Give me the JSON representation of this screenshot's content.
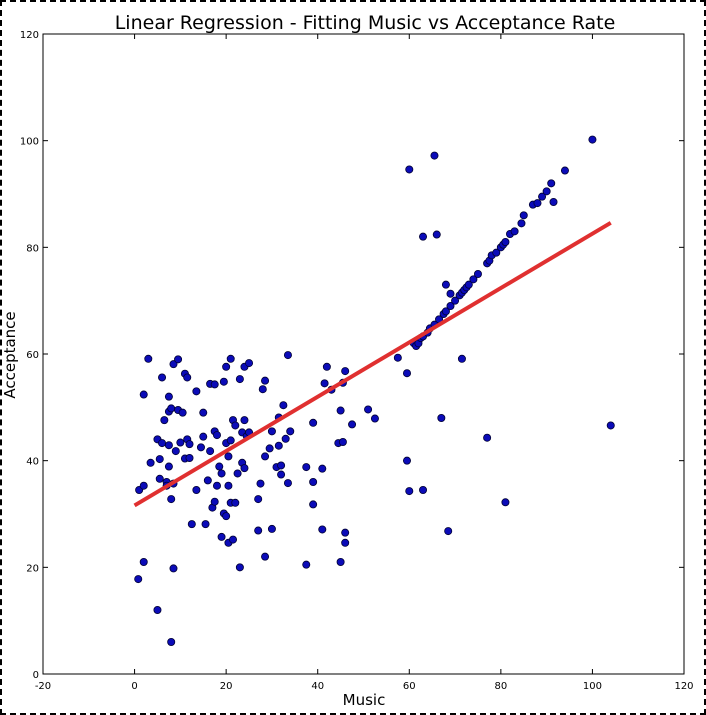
{
  "chart_data": {
    "type": "scatter",
    "title": "Linear Regression - Fitting Music vs Acceptance Rate",
    "xlabel": "Music",
    "ylabel": "Acceptance",
    "xlim": [
      -20,
      120
    ],
    "ylim": [
      0,
      120
    ],
    "xticks": [
      -20,
      0,
      20,
      40,
      60,
      80,
      100,
      120
    ],
    "yticks": [
      0,
      20,
      40,
      60,
      80,
      100,
      120
    ],
    "grid": false,
    "colors": {
      "points": "#0b0bb8",
      "point_edge": "#000033",
      "fit_line": "#e03030"
    },
    "series": [
      {
        "type": "scatter",
        "points": [
          [
            0.8,
            17.8
          ],
          [
            1,
            34.5
          ],
          [
            2,
            21
          ],
          [
            2,
            35.3
          ],
          [
            2,
            52.4
          ],
          [
            3,
            59.1
          ],
          [
            3.5,
            39.6
          ],
          [
            5,
            12
          ],
          [
            5,
            44
          ],
          [
            5.5,
            36.6
          ],
          [
            5.5,
            40.3
          ],
          [
            6,
            43.3
          ],
          [
            6,
            55.6
          ],
          [
            6.5,
            47.6
          ],
          [
            7,
            36
          ],
          [
            7,
            35.3
          ],
          [
            7.5,
            42.9
          ],
          [
            7.5,
            38.9
          ],
          [
            7.5,
            49.2
          ],
          [
            7.5,
            52
          ],
          [
            8,
            6
          ],
          [
            8,
            49.8
          ],
          [
            8,
            32.8
          ],
          [
            8.5,
            19.8
          ],
          [
            8.5,
            35.7
          ],
          [
            8.5,
            58.1
          ],
          [
            9,
            41.8
          ],
          [
            9.5,
            49.5
          ],
          [
            9.5,
            59
          ],
          [
            10,
            43.4
          ],
          [
            10.5,
            49
          ],
          [
            11,
            40.4
          ],
          [
            11,
            56.3
          ],
          [
            11.5,
            44
          ],
          [
            11.5,
            55.6
          ],
          [
            12,
            40.5
          ],
          [
            12,
            43.1
          ],
          [
            12.5,
            28.1
          ],
          [
            13.5,
            53
          ],
          [
            13.5,
            34.5
          ],
          [
            14.5,
            42.5
          ],
          [
            15,
            44.5
          ],
          [
            15,
            49
          ],
          [
            15.5,
            28.1
          ],
          [
            16,
            36.3
          ],
          [
            16.5,
            54.4
          ],
          [
            16.5,
            41.8
          ],
          [
            17,
            31.2
          ],
          [
            17.5,
            54.3
          ],
          [
            17.5,
            45.5
          ],
          [
            17.5,
            32.3
          ],
          [
            18,
            44.8
          ],
          [
            18,
            35.3
          ],
          [
            18.5,
            38.9
          ],
          [
            19,
            25.7
          ],
          [
            19,
            37.6
          ],
          [
            19.5,
            30.1
          ],
          [
            19.5,
            54.8
          ],
          [
            20,
            29.6
          ],
          [
            20,
            57.6
          ],
          [
            20,
            43.3
          ],
          [
            20.5,
            24.6
          ],
          [
            20.5,
            35.3
          ],
          [
            20.5,
            40.8
          ],
          [
            21,
            59.1
          ],
          [
            21,
            43.8
          ],
          [
            21,
            32.1
          ],
          [
            21.5,
            47.6
          ],
          [
            21.5,
            25.2
          ],
          [
            22,
            46.6
          ],
          [
            22,
            32.1
          ],
          [
            22.5,
            37.6
          ],
          [
            23,
            20
          ],
          [
            23,
            55.3
          ],
          [
            23.5,
            45.3
          ],
          [
            23.5,
            39.6
          ],
          [
            24,
            47.6
          ],
          [
            24,
            57.6
          ],
          [
            24,
            38.6
          ],
          [
            24.5,
            44.6
          ],
          [
            25,
            58.3
          ],
          [
            25,
            45.3
          ],
          [
            27,
            32.8
          ],
          [
            27,
            26.9
          ],
          [
            27.5,
            35.7
          ],
          [
            28,
            53.4
          ],
          [
            28.5,
            40.8
          ],
          [
            28.5,
            55
          ],
          [
            28.5,
            22
          ],
          [
            29.5,
            42.3
          ],
          [
            30,
            45.5
          ],
          [
            30,
            27.2
          ],
          [
            31,
            38.8
          ],
          [
            31.5,
            48.1
          ],
          [
            31.5,
            42.8
          ],
          [
            32,
            37.4
          ],
          [
            32,
            39.1
          ],
          [
            32.5,
            50.4
          ],
          [
            33,
            44.1
          ],
          [
            33.5,
            35.8
          ],
          [
            33.5,
            59.8
          ],
          [
            34,
            45.5
          ],
          [
            37.5,
            20.5
          ],
          [
            37.5,
            38.8
          ],
          [
            39,
            36
          ],
          [
            39,
            31.8
          ],
          [
            39,
            47.1
          ],
          [
            41,
            38.5
          ],
          [
            41,
            27.1
          ],
          [
            41.5,
            54.5
          ],
          [
            42,
            57.6
          ],
          [
            43,
            53.3
          ],
          [
            44.5,
            43.3
          ],
          [
            45,
            49.4
          ],
          [
            45,
            21
          ],
          [
            45.5,
            43.5
          ],
          [
            45.5,
            54.6
          ],
          [
            46,
            24.6
          ],
          [
            46,
            26.5
          ],
          [
            46,
            56.8
          ],
          [
            47.5,
            46.8
          ],
          [
            51,
            49.6
          ],
          [
            52.5,
            47.9
          ],
          [
            57.5,
            59.3
          ],
          [
            59.5,
            40
          ],
          [
            59.5,
            56.4
          ],
          [
            60,
            34.3
          ],
          [
            60,
            94.6
          ],
          [
            61,
            62
          ],
          [
            61.5,
            61.5
          ],
          [
            62,
            62
          ],
          [
            62.5,
            63
          ],
          [
            63,
            34.5
          ],
          [
            63,
            82
          ],
          [
            63,
            63.3
          ],
          [
            64,
            64
          ],
          [
            64.5,
            64.8
          ],
          [
            65.5,
            97.2
          ],
          [
            65.5,
            65.5
          ],
          [
            66,
            82.4
          ],
          [
            66.5,
            66.5
          ],
          [
            67,
            48
          ],
          [
            67.5,
            67.5
          ],
          [
            68,
            73
          ],
          [
            68,
            68
          ],
          [
            68.5,
            26.8
          ],
          [
            69,
            69
          ],
          [
            69,
            71.3
          ],
          [
            70,
            70
          ],
          [
            71,
            71
          ],
          [
            71.5,
            59.1
          ],
          [
            71.5,
            71.5
          ],
          [
            72,
            72
          ],
          [
            72.5,
            72.5
          ],
          [
            73,
            73
          ],
          [
            74,
            74
          ],
          [
            75,
            75
          ],
          [
            77,
            44.3
          ],
          [
            77,
            77
          ],
          [
            77.5,
            77.5
          ],
          [
            78,
            78.5
          ],
          [
            79,
            79
          ],
          [
            80,
            80
          ],
          [
            80.5,
            80.5
          ],
          [
            81,
            32.2
          ],
          [
            81,
            81
          ],
          [
            82,
            82.5
          ],
          [
            83,
            83
          ],
          [
            84.5,
            84.5
          ],
          [
            85,
            86
          ],
          [
            87,
            88
          ],
          [
            88,
            88.3
          ],
          [
            89,
            89.5
          ],
          [
            90,
            90.5
          ],
          [
            91,
            92
          ],
          [
            91.5,
            88.5
          ],
          [
            94,
            94.4
          ],
          [
            100,
            100.2
          ],
          [
            104,
            46.6
          ]
        ]
      },
      {
        "type": "line",
        "points": [
          [
            0,
            31.6
          ],
          [
            104,
            84.6
          ]
        ]
      }
    ]
  }
}
